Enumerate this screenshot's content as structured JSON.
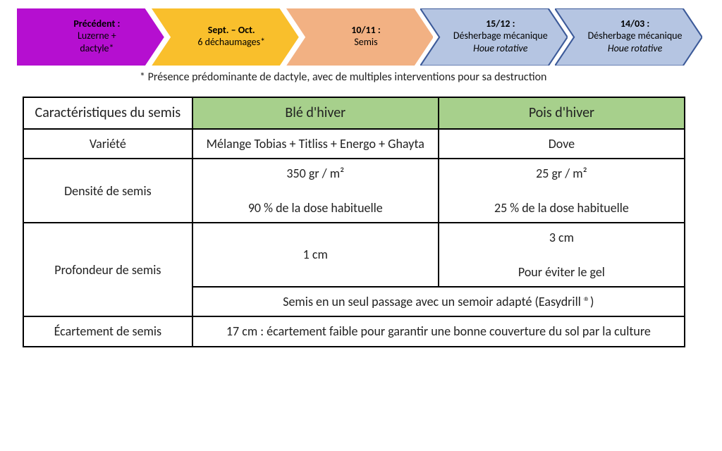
{
  "timeline": {
    "steps": [
      {
        "title": "Précédent :",
        "line2": "Luzerne +",
        "line3": "dactyle*",
        "fill": "#b50fd0",
        "stroke": "#b50fd0",
        "titleBold": true
      },
      {
        "title": "Sept. – Oct.",
        "line2": "6 déchaumages*",
        "line3": "",
        "fill": "#f9bf2c",
        "stroke": "#f9bf2c",
        "titleBold": true
      },
      {
        "title": "10/11 :",
        "line2": "Semis",
        "line3": "",
        "fill": "#f2b183",
        "stroke": "#f2b183",
        "titleBold": true
      },
      {
        "title": "15/12 :",
        "line2": "Désherbage mécanique",
        "line3": "Houe rotative",
        "fill": "#b5c5e2",
        "stroke": "#3c5a99",
        "titleBold": true,
        "line3Italic": true
      },
      {
        "title": "14/03 :",
        "line2": "Désherbage mécanique",
        "line3": "Houe rotative",
        "fill": "#b5c5e2",
        "stroke": "#3c5a99",
        "titleBold": true,
        "line3Italic": true
      }
    ]
  },
  "footnote": "* Présence prédominante de dactyle, avec de multiples interventions pour sa destruction",
  "table": {
    "header": {
      "main": "Caractéristiques du semis",
      "col1": "Blé d'hiver",
      "col2": "Pois d'hiver"
    },
    "rows": {
      "variete": {
        "label": "Variété",
        "c1": "Mélange Tobias + Titliss + Energo + Ghayta",
        "c2": "Dove"
      },
      "densite": {
        "label": "Densité de semis",
        "c1a": "350 gr / m²",
        "c1b": "90 % de la dose habituelle",
        "c2a": "25 gr / m²",
        "c2b": "25 % de la dose habituelle"
      },
      "profondeur": {
        "label": "Profondeur de semis",
        "c1": "1 cm",
        "c2a": "3 cm",
        "c2b": "Pour éviter le gel",
        "merged": "Semis en un seul passage avec un semoir adapté (Easydrill ®)"
      },
      "ecartement": {
        "label": "Écartement de semis",
        "merged": "17 cm : écartement faible pour garantir une bonne couverture du sol par la culture"
      }
    },
    "colors": {
      "header_main": "#3da639",
      "header_sub": "#a7d08c",
      "border": "#000000",
      "bg": "#ffffff"
    }
  }
}
